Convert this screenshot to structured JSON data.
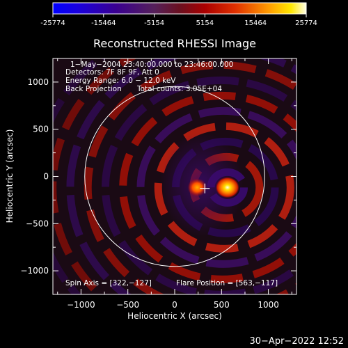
{
  "colorbar": {
    "ticks": [
      "-25774",
      "-15464",
      "-5154",
      "5154",
      "15464",
      "25774"
    ],
    "range": [
      -25774,
      25774
    ],
    "colors": [
      "#0000ff",
      "#2200cc",
      "#4a0080",
      "#5a1a5a",
      "#7a1010",
      "#b00000",
      "#e03000",
      "#ff9000",
      "#ffe000",
      "#ffffe0"
    ]
  },
  "chart_data": {
    "type": "heatmap",
    "title": "Reconstructed RHESSI Image",
    "xlabel": "Heliocentric X (arcsec)",
    "ylabel": "Heliocentric Y (arcsec)",
    "xlim": [
      -1300,
      1300
    ],
    "ylim": [
      -1250,
      1250
    ],
    "x_ticks": [
      -1000,
      -500,
      0,
      500,
      1000
    ],
    "y_ticks": [
      1000,
      500,
      0,
      -500,
      -1000
    ],
    "x_tick_labels": [
      "−1000",
      "−500",
      "0",
      "500",
      "1000"
    ],
    "y_tick_labels": [
      "1000",
      "500",
      "0",
      "−500",
      "−1000"
    ],
    "solar_disk": {
      "center": [
        0,
        0
      ],
      "radius": 960
    },
    "marker": {
      "label": "spin axis",
      "x": 322,
      "y": -127
    },
    "flare_source": {
      "x": 563,
      "y": -117
    },
    "secondary_source": {
      "x": 240,
      "y": -117
    }
  },
  "info": {
    "line1": "1−May−2004 23:40:00.000 to 23:46:00.000",
    "line2": "Detectors: 7F 8F 9F, Att 0",
    "line3": "Energy Range: 6.0 − 12.0 keV",
    "line4a": "Back Projection",
    "line4b": "Total counts: 3.05E+04",
    "spin_axis": "Spin Axis = [322,−127]",
    "flare_position": "Flare Position = [563,−117]"
  },
  "footer": {
    "timestamp": "30−Apr−2022 12:52"
  }
}
